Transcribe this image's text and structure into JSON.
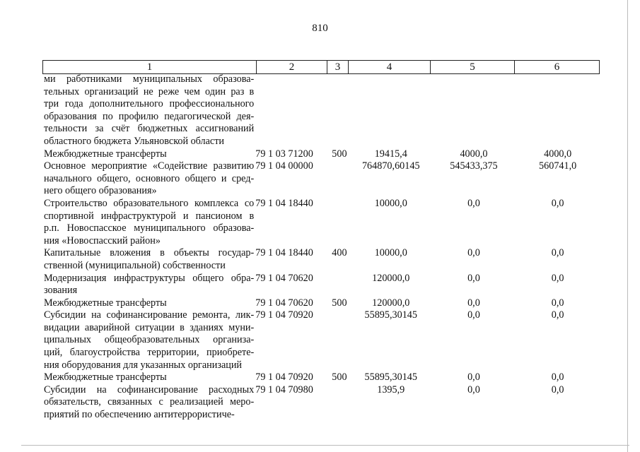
{
  "page_number": "810",
  "header": [
    "1",
    "2",
    "3",
    "4",
    "5",
    "6"
  ],
  "rows": [
    {
      "lines": [
        "ми работниками муниципальных образова-",
        "тельных организаций не реже чем один раз в",
        "три года дополнительного профессионального",
        "образования по профилю педагогической дея-",
        "тельности за счёт бюджетных ассигнований",
        "областного бюджета Ульяновской области"
      ],
      "code": "",
      "vr": "",
      "v4": "",
      "v5": "",
      "v6": ""
    },
    {
      "lines": [
        "Межбюджетные трансферты"
      ],
      "code": "79 1 03 71200",
      "vr": "500",
      "v4": "19415,4",
      "v5": "4000,0",
      "v6": "4000,0"
    },
    {
      "lines": [
        "Основное мероприятие «Содействие развитию",
        "начального общего, основного общего и сред-",
        "него общего образования»"
      ],
      "code": "79 1 04 00000",
      "vr": "",
      "v4": "764870,60145",
      "v5": "545433,375",
      "v6": "560741,0"
    },
    {
      "lines": [
        "Строительство образовательного комплекса со",
        "спортивной инфраструктурой и пансионом в",
        "р.п. Новоспасское муниципального образова-",
        "ния «Новоспасский район»"
      ],
      "code": "79 1 04 18440",
      "vr": "",
      "v4": "10000,0",
      "v5": "0,0",
      "v6": "0,0"
    },
    {
      "lines": [
        "Капитальные вложения в объекты государ-",
        "ственной (муниципальной) собственности"
      ],
      "code": "79 1 04 18440",
      "vr": "400",
      "v4": "10000,0",
      "v5": "0,0",
      "v6": "0,0"
    },
    {
      "lines": [
        "Модернизация инфраструктуры общего обра-",
        "зования"
      ],
      "code": "79 1 04 70620",
      "vr": "",
      "v4": "120000,0",
      "v5": "0,0",
      "v6": "0,0"
    },
    {
      "lines": [
        "Межбюджетные трансферты"
      ],
      "code": "79 1 04 70620",
      "vr": "500",
      "v4": "120000,0",
      "v5": "0,0",
      "v6": "0,0"
    },
    {
      "lines": [
        "Субсидии на софинансирование ремонта, лик-",
        "видации аварийной ситуации в зданиях муни-",
        "ципальных общеобразовательных организа-",
        "ций, благоустройства территории, приобрете-",
        "ния оборудования для указанных организаций"
      ],
      "code": "79 1 04 70920",
      "vr": "",
      "v4": "55895,30145",
      "v5": "0,0",
      "v6": "0,0"
    },
    {
      "lines": [
        "Межбюджетные трансферты"
      ],
      "code": "79 1 04 70920",
      "vr": "500",
      "v4": "55895,30145",
      "v5": "0,0",
      "v6": "0,0"
    },
    {
      "lines": [
        "Субсидии на софинансирование расходных",
        "обязательств, связанных с реализацией меро-",
        "приятий по обеспечению антитеррористиче-"
      ],
      "code": "79 1 04 70980",
      "vr": "",
      "v4": "1395,9",
      "v5": "0,0",
      "v6": "0,0"
    }
  ]
}
